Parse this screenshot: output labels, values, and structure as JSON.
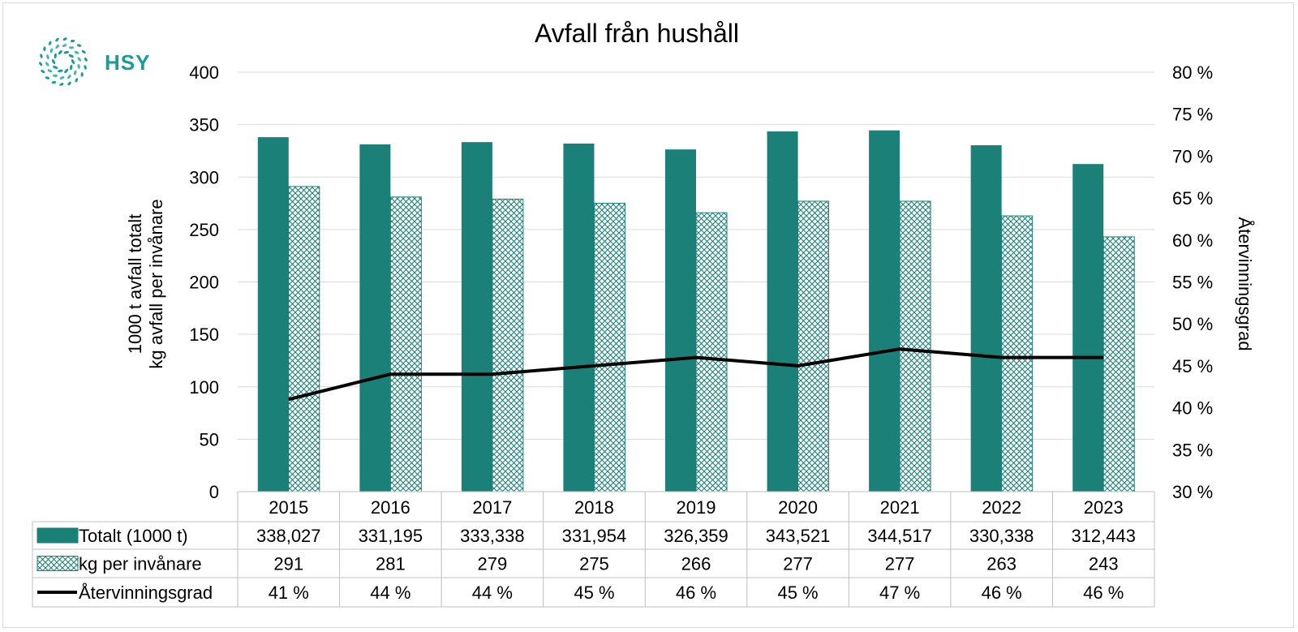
{
  "brand": {
    "name": "HSY",
    "color": "#1a9d9a"
  },
  "chart_data": {
    "type": "bar",
    "title": "Avfall från hushåll",
    "ylabel_left": [
      "1000 t avfall totalt",
      "kg avfall per invånare"
    ],
    "ylabel_right": "Återvinningsgrad",
    "ylim_left": [
      0,
      400
    ],
    "yticks_left": [
      0,
      50,
      100,
      150,
      200,
      250,
      300,
      350,
      400
    ],
    "ylim_right": [
      30,
      80
    ],
    "yticks_right": [
      "30 %",
      "35 %",
      "40 %",
      "45 %",
      "50 %",
      "55 %",
      "60 %",
      "65 %",
      "70 %",
      "75 %",
      "80 %"
    ],
    "grid": true,
    "legend_placement": "data-table",
    "categories": [
      "2015",
      "2016",
      "2017",
      "2018",
      "2019",
      "2020",
      "2021",
      "2022",
      "2023"
    ],
    "series": [
      {
        "name": "Totalt (1000 t)",
        "type": "bar",
        "axis": "left",
        "color": "#1b8077",
        "values": [
          338.027,
          331.195,
          333.338,
          331.954,
          326.359,
          343.521,
          344.517,
          330.338,
          312.443
        ],
        "labels": [
          "338,027",
          "331,195",
          "333,338",
          "331,954",
          "326,359",
          "343,521",
          "344,517",
          "330,338",
          "312,443"
        ]
      },
      {
        "name": "kg per invånare",
        "type": "bar",
        "pattern": "crosshatch",
        "axis": "left",
        "color": "#1b8077",
        "values": [
          291,
          281,
          279,
          275,
          266,
          277,
          277,
          263,
          243
        ],
        "labels": [
          "291",
          "281",
          "279",
          "275",
          "266",
          "277",
          "277",
          "263",
          "243"
        ]
      },
      {
        "name": "Återvinningsgrad",
        "type": "line",
        "axis": "right",
        "color": "#000000",
        "values": [
          41,
          44,
          44,
          45,
          46,
          45,
          47,
          46,
          46
        ],
        "labels": [
          "41 %",
          "44 %",
          "44 %",
          "45 %",
          "46 %",
          "45 %",
          "47 %",
          "46 %",
          "46 %"
        ]
      }
    ]
  }
}
